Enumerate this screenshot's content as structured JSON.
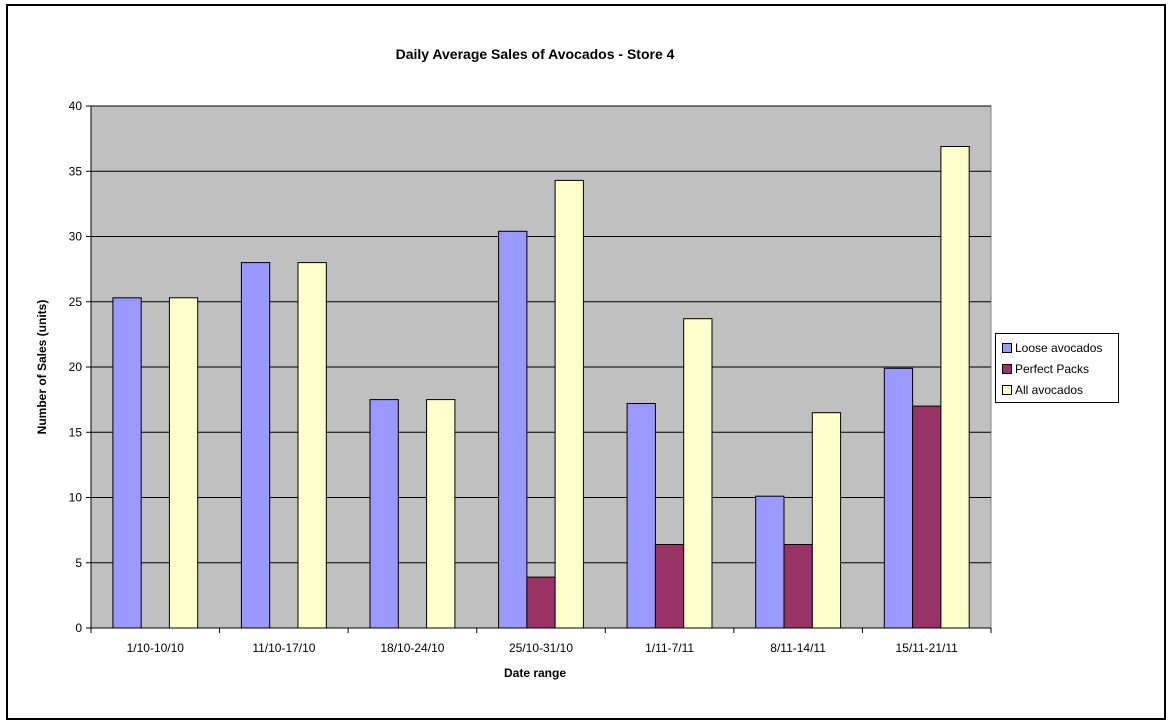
{
  "chart_data": {
    "type": "bar",
    "title": "Daily Average Sales of Avocados - Store 4",
    "xlabel": "Date range",
    "ylabel": "Number of Sales (units)",
    "ylim": [
      0,
      40
    ],
    "ytick_step": 5,
    "grid": true,
    "legend_position": "right",
    "categories": [
      "1/10-10/10",
      "11/10-17/10",
      "18/10-24/10",
      "25/10-31/10",
      "1/11-7/11",
      "8/11-14/11",
      "15/11-21/11"
    ],
    "series": [
      {
        "name": "Loose avocados",
        "color": "#9999ff",
        "values": [
          25.3,
          28,
          17.5,
          30.4,
          17.2,
          10.1,
          19.9
        ]
      },
      {
        "name": "Perfect Packs",
        "color": "#993366",
        "values": [
          0,
          0,
          0,
          3.9,
          6.4,
          6.4,
          17.0
        ]
      },
      {
        "name": "All avocados",
        "color": "#ffffcc",
        "values": [
          25.3,
          28,
          17.5,
          34.3,
          23.7,
          16.5,
          36.9
        ]
      }
    ],
    "plot_background": "#c0c0c0"
  }
}
